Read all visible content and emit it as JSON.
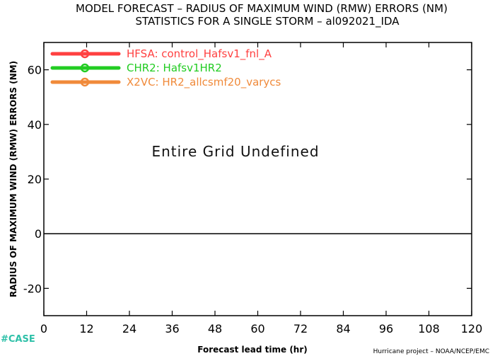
{
  "chart_data": {
    "type": "line",
    "title": "MODEL FORECAST – RADIUS OF MAXIMUM WIND (RMW) ERRORS (NM)",
    "subtitle": "STATISTICS FOR A SINGLE STORM – al092021_IDA",
    "xlabel": "Forecast lead time (hr)",
    "ylabel": "RADIUS OF MAXIMUM WIND (RMW) ERRORS (NM)",
    "xlim": [
      0,
      120
    ],
    "ylim": [
      -30,
      70
    ],
    "x_ticks": [
      0,
      12,
      24,
      36,
      48,
      60,
      72,
      84,
      96,
      108,
      120
    ],
    "x_tick_labels": [
      "0",
      "12",
      "24",
      "36",
      "48",
      "60",
      "72",
      "84",
      "96",
      "108",
      "120"
    ],
    "y_ticks": [
      -20,
      0,
      20,
      40,
      60
    ],
    "y_tick_labels": [
      "-20",
      "0",
      "20",
      "40",
      "60"
    ],
    "zero_line": 0,
    "grid": false,
    "legend_placement": "top-left",
    "series": [
      {
        "name": "HFSA: control_Hafsv1_fnl_A",
        "color": "#ff4040",
        "values": []
      },
      {
        "name": "CHR2: Hafsv1HR2",
        "color": "#22cc22",
        "values": []
      },
      {
        "name": "X2VC: HR2_allcsmf20_varycs",
        "color": "#f08a3a",
        "values": []
      }
    ],
    "annotation": "Entire Grid Undefined"
  },
  "footer": {
    "case_label": "#CASE",
    "case_color": "#2ec0a8",
    "credit": "Hurricane project – NOAA/NCEP/EMC"
  }
}
